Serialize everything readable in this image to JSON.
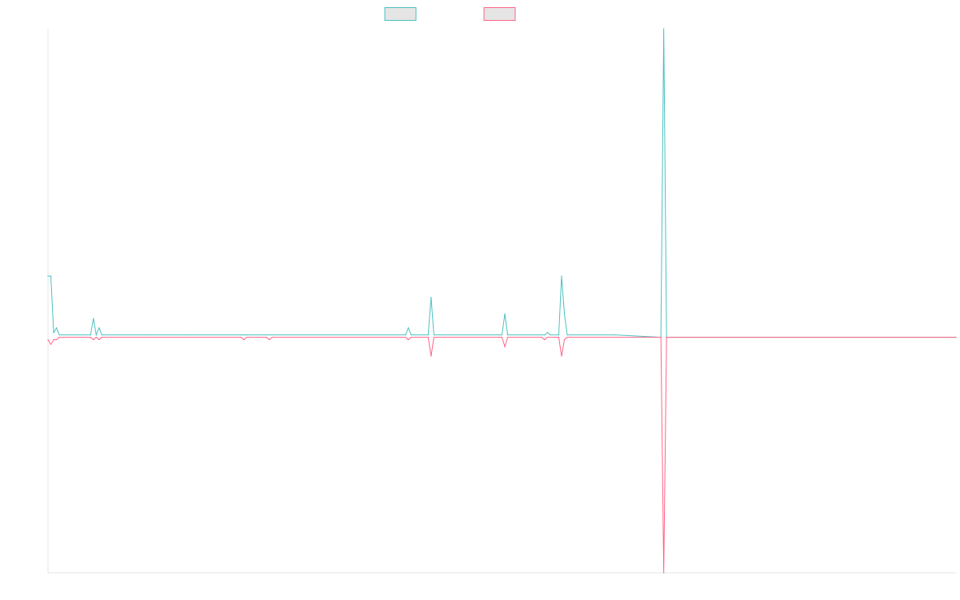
{
  "chart_data": {
    "type": "line",
    "title": "",
    "xlabel": "",
    "ylabel": "",
    "grid": false,
    "legend": "top-center",
    "xlim": [
      0,
      320
    ],
    "ylim": [
      -1,
      1.31
    ],
    "series": [
      {
        "color": "#4bc0c0",
        "fill": "#e5e5e5",
        "points": [
          [
            0,
            0.26
          ],
          [
            1,
            0.26
          ],
          [
            2,
            0.02
          ],
          [
            3,
            0.04
          ],
          [
            4,
            0.01
          ],
          [
            15,
            0.01
          ],
          [
            16,
            0.08
          ],
          [
            17,
            0.01
          ],
          [
            18,
            0.04
          ],
          [
            19,
            0.01
          ],
          [
            35,
            0.01
          ],
          [
            48,
            0.01
          ],
          [
            68,
            0.01
          ],
          [
            69,
            0.01
          ],
          [
            70,
            0.01
          ],
          [
            77,
            0.01
          ],
          [
            126,
            0.01
          ],
          [
            127,
            0.04
          ],
          [
            128,
            0.01
          ],
          [
            129,
            0.01
          ],
          [
            134,
            0.01
          ],
          [
            135,
            0.17
          ],
          [
            136,
            0.01
          ],
          [
            159,
            0.01
          ],
          [
            160,
            0.01
          ],
          [
            161,
            0.1
          ],
          [
            162,
            0.01
          ],
          [
            174,
            0.01
          ],
          [
            175,
            0.01
          ],
          [
            176,
            0.02
          ],
          [
            177,
            0.01
          ],
          [
            180,
            0.01
          ],
          [
            181,
            0.26
          ],
          [
            182,
            0.1
          ],
          [
            183,
            0.01
          ],
          [
            200,
            0.01
          ],
          [
            216,
            0.0
          ],
          [
            217,
            1.31
          ],
          [
            218,
            0.0
          ],
          [
            320,
            0.0
          ]
        ]
      },
      {
        "color": "#ff6384",
        "fill": "#e5e5e5",
        "points": [
          [
            0,
            -0.01
          ],
          [
            1,
            -0.03
          ],
          [
            2,
            -0.01
          ],
          [
            3,
            -0.01
          ],
          [
            4,
            0.0
          ],
          [
            15,
            0.0
          ],
          [
            16,
            -0.01
          ],
          [
            17,
            0.0
          ],
          [
            18,
            -0.01
          ],
          [
            19,
            0.0
          ],
          [
            68,
            0.0
          ],
          [
            69,
            -0.01
          ],
          [
            70,
            0.0
          ],
          [
            77,
            0.0
          ],
          [
            78,
            -0.01
          ],
          [
            79,
            0.0
          ],
          [
            126,
            0.0
          ],
          [
            127,
            -0.01
          ],
          [
            128,
            0.0
          ],
          [
            134,
            0.0
          ],
          [
            135,
            -0.08
          ],
          [
            136,
            0.0
          ],
          [
            159,
            0.0
          ],
          [
            160,
            0.0
          ],
          [
            161,
            -0.04
          ],
          [
            162,
            0.0
          ],
          [
            174,
            0.0
          ],
          [
            175,
            -0.01
          ],
          [
            176,
            0.0
          ],
          [
            180,
            0.0
          ],
          [
            181,
            -0.08
          ],
          [
            182,
            -0.01
          ],
          [
            183,
            0.0
          ],
          [
            216,
            0.0
          ],
          [
            217,
            -1.0
          ],
          [
            218,
            0.0
          ],
          [
            320,
            0.0
          ]
        ]
      }
    ]
  }
}
